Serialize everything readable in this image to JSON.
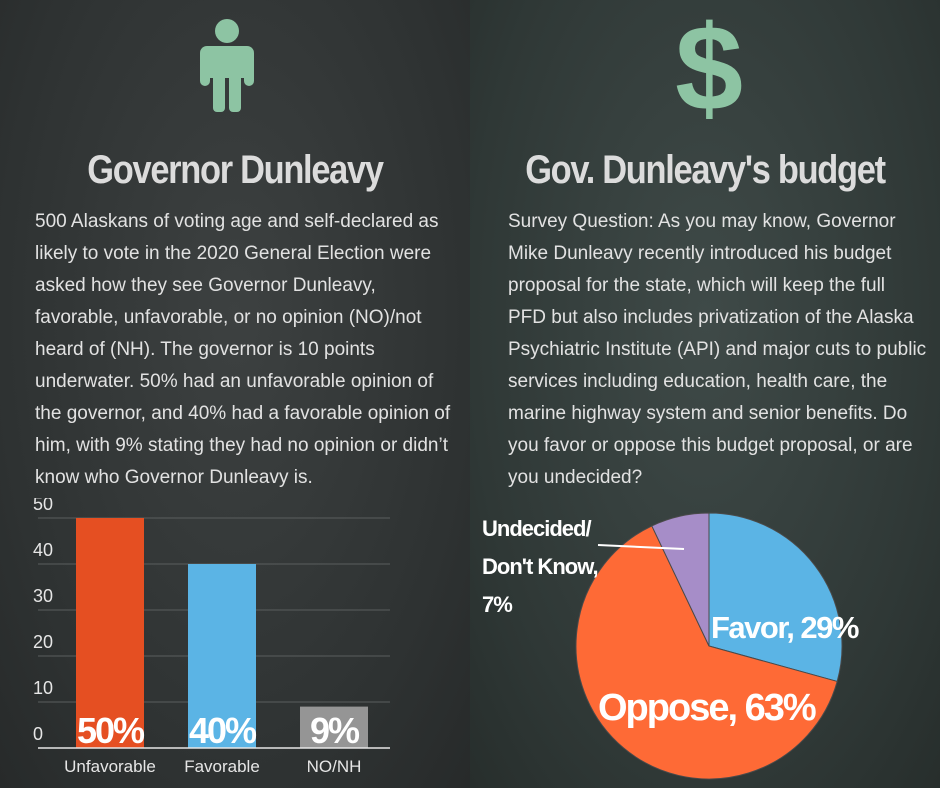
{
  "left": {
    "icon": "person-icon",
    "title": "Governor Dunleavy",
    "paragraph": "500 Alaskans of voting age and self-declared as likely to vote in the 2020 General Election were asked how they see Governor Dunleavy, favorable, unfavorable, or no opinion (NO)/not heard of (NH). The governor is 10 points underwater. 50% had an unfavorable opinion of the governor, and 40% had a favorable opinion of him, with 9% stating they had no opinion or didn’t know who Governor Dunleavy is."
  },
  "right": {
    "icon": "dollar-icon",
    "title": "Gov. Dunleavy's budget",
    "paragraph": "Survey Question: As you may know, Governor Mike Dunleavy recently introduced his budget proposal for the state, which will keep the full PFD but also includes privatization of the Alaska Psychiatric Institute (API) and major cuts to public services including education, health care, the marine highway system and senior benefits. Do you favor or oppose this budget proposal, or are you undecided?"
  },
  "colors": {
    "icon": "#8dc4a3",
    "unfavorable": "#e54f22",
    "favorable": "#5bb4e5",
    "nonh": "#959595",
    "favor": "#5bb4e5",
    "oppose": "#fe6a36",
    "undecided": "#a68dc8"
  },
  "chart_data": [
    {
      "type": "bar",
      "categories": [
        "Unfavorable",
        "Favorable",
        "NO/NH"
      ],
      "values": [
        50,
        40,
        9
      ],
      "data_labels": [
        "50%",
        "40%",
        "9%"
      ],
      "yticks": [
        "0",
        "10",
        "20",
        "30",
        "40",
        "50"
      ],
      "ylim": [
        0,
        50
      ],
      "grid": true
    },
    {
      "type": "pie",
      "slices": [
        {
          "label": "Favor, 29%",
          "value": 29
        },
        {
          "label": "Oppose, 63%",
          "value": 63
        },
        {
          "label": "Undecided/ Don't Know, 7%",
          "value": 7,
          "label_lines": [
            "Undecided/",
            "Don't Know,",
            "7%"
          ]
        }
      ]
    }
  ]
}
